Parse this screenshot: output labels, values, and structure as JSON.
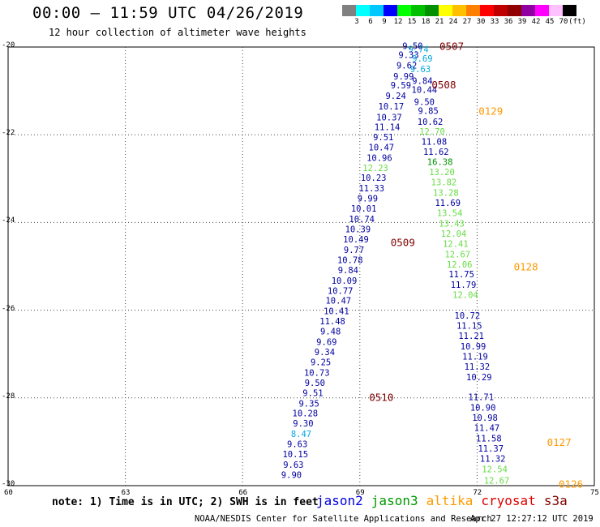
{
  "title": "00:00 – 11:59 UTC 04/26/2019",
  "subtitle": "12 hour collection of altimeter wave heights",
  "colorbar": {
    "colors": [
      "#808080",
      "#00ffff",
      "#00c8ff",
      "#0000ff",
      "#00ff00",
      "#00c000",
      "#009000",
      "#ffff00",
      "#ffc000",
      "#ff8000",
      "#ff0000",
      "#c00000",
      "#900000",
      "#9000a0",
      "#ff00ff",
      "#ffc0ff",
      "#000000"
    ],
    "labels": [
      "3",
      "6",
      "9",
      "12",
      "15",
      "18",
      "21",
      "24",
      "27",
      "30",
      "33",
      "36",
      "39",
      "42",
      "45",
      "70",
      "(ft)"
    ]
  },
  "axes": {
    "x_ticks": [
      "60",
      "63",
      "66",
      "69",
      "72",
      "75"
    ],
    "y_ticks": [
      "-20",
      "-22",
      "-24",
      "-26",
      "-28",
      "-30"
    ]
  },
  "chart_data": {
    "type": "scatter",
    "x_range": [
      60,
      75
    ],
    "y_range": [
      -30,
      -20
    ],
    "colors": {
      "jason2": "#0000a0",
      "jason3": "#009000",
      "altika": "#ff9900",
      "cryosat": "#cc0000",
      "s3a": "#800000",
      "light_blue": "#00a8e0",
      "light_green": "#66dd44"
    },
    "pass_times": [
      {
        "label": "0507",
        "x": 71.35,
        "y": -19.97,
        "color": "s3a"
      },
      {
        "label": "0508",
        "x": 71.15,
        "y": -20.85,
        "color": "s3a"
      },
      {
        "label": "0129",
        "x": 72.35,
        "y": -21.45,
        "color": "altika"
      },
      {
        "label": "0509",
        "x": 70.1,
        "y": -24.45,
        "color": "s3a"
      },
      {
        "label": "0128",
        "x": 73.25,
        "y": -25.0,
        "color": "altika"
      },
      {
        "label": "0510",
        "x": 69.55,
        "y": -27.98,
        "color": "s3a"
      },
      {
        "label": "0127",
        "x": 74.1,
        "y": -29.0,
        "color": "altika"
      },
      {
        "label": "0126",
        "x": 74.4,
        "y": -29.95,
        "color": "altika"
      }
    ],
    "observations": [
      {
        "v": "9.50",
        "x": 70.35,
        "y": -19.97,
        "c": "jason2"
      },
      {
        "v": "9.74",
        "x": 70.5,
        "y": -20.05,
        "c": "light_blue"
      },
      {
        "v": "9.33",
        "x": 70.25,
        "y": -20.18,
        "c": "jason2"
      },
      {
        "v": "9.69",
        "x": 70.6,
        "y": -20.26,
        "c": "light_blue"
      },
      {
        "v": "9.62",
        "x": 70.2,
        "y": -20.42,
        "c": "jason2"
      },
      {
        "v": "9.63",
        "x": 70.55,
        "y": -20.5,
        "c": "light_blue"
      },
      {
        "v": "9.99",
        "x": 70.12,
        "y": -20.67,
        "c": "jason2"
      },
      {
        "v": "9.84",
        "x": 70.6,
        "y": -20.77,
        "c": "jason2"
      },
      {
        "v": "9.59",
        "x": 70.05,
        "y": -20.87,
        "c": "jason2"
      },
      {
        "v": "10.44",
        "x": 70.65,
        "y": -20.97,
        "c": "jason2"
      },
      {
        "v": "9.24",
        "x": 69.92,
        "y": -21.11,
        "c": "jason2"
      },
      {
        "v": "9.50",
        "x": 70.65,
        "y": -21.25,
        "c": "jason2"
      },
      {
        "v": "10.17",
        "x": 69.8,
        "y": -21.35,
        "c": "jason2"
      },
      {
        "v": "9.85",
        "x": 70.75,
        "y": -21.45,
        "c": "jason2"
      },
      {
        "v": "10.37",
        "x": 69.75,
        "y": -21.6,
        "c": "jason2"
      },
      {
        "v": "10.62",
        "x": 70.8,
        "y": -21.7,
        "c": "jason2"
      },
      {
        "v": "11.14",
        "x": 69.7,
        "y": -21.82,
        "c": "jason2"
      },
      {
        "v": "12.70",
        "x": 70.85,
        "y": -21.92,
        "c": "light_green"
      },
      {
        "v": "9.51",
        "x": 69.6,
        "y": -22.05,
        "c": "jason2"
      },
      {
        "v": "11.08",
        "x": 70.9,
        "y": -22.15,
        "c": "jason2"
      },
      {
        "v": "10.47",
        "x": 69.55,
        "y": -22.28,
        "c": "jason2"
      },
      {
        "v": "11.62",
        "x": 70.95,
        "y": -22.38,
        "c": "jason2"
      },
      {
        "v": "10.96",
        "x": 69.5,
        "y": -22.52,
        "c": "jason2"
      },
      {
        "v": "16.38",
        "x": 71.05,
        "y": -22.62,
        "c": "jason3"
      },
      {
        "v": "12.23",
        "x": 69.4,
        "y": -22.75,
        "c": "light_green"
      },
      {
        "v": "13.20",
        "x": 71.1,
        "y": -22.85,
        "c": "light_green"
      },
      {
        "v": "10.23",
        "x": 69.35,
        "y": -22.98,
        "c": "jason2"
      },
      {
        "v": "13.82",
        "x": 71.15,
        "y": -23.08,
        "c": "light_green"
      },
      {
        "v": "11.33",
        "x": 69.3,
        "y": -23.22,
        "c": "jason2"
      },
      {
        "v": "13.28",
        "x": 71.2,
        "y": -23.32,
        "c": "light_green"
      },
      {
        "v": "9.99",
        "x": 69.2,
        "y": -23.45,
        "c": "jason2"
      },
      {
        "v": "11.69",
        "x": 71.25,
        "y": -23.55,
        "c": "jason2"
      },
      {
        "v": "10.01",
        "x": 69.1,
        "y": -23.68,
        "c": "jason2"
      },
      {
        "v": "13.54",
        "x": 71.3,
        "y": -23.78,
        "c": "light_green"
      },
      {
        "v": "10.74",
        "x": 69.05,
        "y": -23.92,
        "c": "jason2"
      },
      {
        "v": "13.43",
        "x": 71.35,
        "y": -24.02,
        "c": "light_green"
      },
      {
        "v": "10.39",
        "x": 68.95,
        "y": -24.15,
        "c": "jason2"
      },
      {
        "v": "12.04",
        "x": 71.4,
        "y": -24.25,
        "c": "light_green"
      },
      {
        "v": "10.49",
        "x": 68.9,
        "y": -24.38,
        "c": "jason2"
      },
      {
        "v": "12.41",
        "x": 71.45,
        "y": -24.48,
        "c": "light_green"
      },
      {
        "v": "9.77",
        "x": 68.85,
        "y": -24.62,
        "c": "jason2"
      },
      {
        "v": "12.67",
        "x": 71.5,
        "y": -24.72,
        "c": "light_green"
      },
      {
        "v": "10.78",
        "x": 68.75,
        "y": -24.85,
        "c": "jason2"
      },
      {
        "v": "12.06",
        "x": 71.55,
        "y": -24.95,
        "c": "light_green"
      },
      {
        "v": "9.84",
        "x": 68.7,
        "y": -25.08,
        "c": "jason2"
      },
      {
        "v": "11.75",
        "x": 71.6,
        "y": -25.18,
        "c": "jason2"
      },
      {
        "v": "10.09",
        "x": 68.6,
        "y": -25.32,
        "c": "jason2"
      },
      {
        "v": "11.79",
        "x": 71.65,
        "y": -25.42,
        "c": "jason2"
      },
      {
        "v": "10.77",
        "x": 68.5,
        "y": -25.55,
        "c": "jason2"
      },
      {
        "v": "12.04",
        "x": 71.7,
        "y": -25.65,
        "c": "light_green"
      },
      {
        "v": "10.47",
        "x": 68.45,
        "y": -25.78,
        "c": "jason2"
      },
      {
        "v": "10.41",
        "x": 68.4,
        "y": -26.02,
        "c": "jason2"
      },
      {
        "v": "10.72",
        "x": 71.75,
        "y": -26.12,
        "c": "jason2"
      },
      {
        "v": "11.48",
        "x": 68.3,
        "y": -26.25,
        "c": "jason2"
      },
      {
        "v": "11.15",
        "x": 71.8,
        "y": -26.35,
        "c": "jason2"
      },
      {
        "v": "9.48",
        "x": 68.25,
        "y": -26.48,
        "c": "jason2"
      },
      {
        "v": "11.21",
        "x": 71.85,
        "y": -26.58,
        "c": "jason2"
      },
      {
        "v": "9.69",
        "x": 68.15,
        "y": -26.72,
        "c": "jason2"
      },
      {
        "v": "10.99",
        "x": 71.9,
        "y": -26.82,
        "c": "jason2"
      },
      {
        "v": "9.34",
        "x": 68.1,
        "y": -26.95,
        "c": "jason2"
      },
      {
        "v": "11.19",
        "x": 71.95,
        "y": -27.05,
        "c": "jason2"
      },
      {
        "v": "9.25",
        "x": 68.0,
        "y": -27.18,
        "c": "jason2"
      },
      {
        "v": "11.32",
        "x": 72.0,
        "y": -27.28,
        "c": "jason2"
      },
      {
        "v": "10.73",
        "x": 67.9,
        "y": -27.42,
        "c": "jason2"
      },
      {
        "v": "10.29",
        "x": 72.05,
        "y": -27.52,
        "c": "jason2"
      },
      {
        "v": "9.50",
        "x": 67.85,
        "y": -27.65,
        "c": "jason2"
      },
      {
        "v": "9.51",
        "x": 67.8,
        "y": -27.88,
        "c": "jason2"
      },
      {
        "v": "11.71",
        "x": 72.1,
        "y": -27.98,
        "c": "jason2"
      },
      {
        "v": "9.35",
        "x": 67.7,
        "y": -28.12,
        "c": "jason2"
      },
      {
        "v": "10.90",
        "x": 72.15,
        "y": -28.22,
        "c": "jason2"
      },
      {
        "v": "10.28",
        "x": 67.6,
        "y": -28.35,
        "c": "jason2"
      },
      {
        "v": "10.98",
        "x": 72.2,
        "y": -28.45,
        "c": "jason2"
      },
      {
        "v": "9.30",
        "x": 67.55,
        "y": -28.58,
        "c": "jason2"
      },
      {
        "v": "11.47",
        "x": 72.25,
        "y": -28.68,
        "c": "jason2"
      },
      {
        "v": "8.47",
        "x": 67.5,
        "y": -28.82,
        "c": "light_blue"
      },
      {
        "v": "11.58",
        "x": 72.3,
        "y": -28.92,
        "c": "jason2"
      },
      {
        "v": "9.63",
        "x": 67.4,
        "y": -29.05,
        "c": "jason2"
      },
      {
        "v": "11.37",
        "x": 72.35,
        "y": -29.15,
        "c": "jason2"
      },
      {
        "v": "10.15",
        "x": 67.35,
        "y": -29.28,
        "c": "jason2"
      },
      {
        "v": "11.32",
        "x": 72.4,
        "y": -29.38,
        "c": "jason2"
      },
      {
        "v": "9.63",
        "x": 67.3,
        "y": -29.52,
        "c": "jason2"
      },
      {
        "v": "12.54",
        "x": 72.45,
        "y": -29.62,
        "c": "light_green"
      },
      {
        "v": "9.90",
        "x": 67.25,
        "y": -29.75,
        "c": "jason2"
      },
      {
        "v": "12.67",
        "x": 72.5,
        "y": -29.88,
        "c": "light_green"
      }
    ]
  },
  "note": "note: 1) Time is in UTC; 2) SWH is in feet",
  "legend": [
    {
      "label": "jason2",
      "color": "#0000dd"
    },
    {
      "label": "jason3",
      "color": "#009900"
    },
    {
      "label": "altika",
      "color": "#ff9900"
    },
    {
      "label": "cryosat",
      "color": "#dd0000"
    },
    {
      "label": "s3a",
      "color": "#800000"
    }
  ],
  "credit": "NOAA/NESDIS Center for Satellite Applications and Research",
  "timestamp": "Apr 27 12:27:12 UTC 2019"
}
